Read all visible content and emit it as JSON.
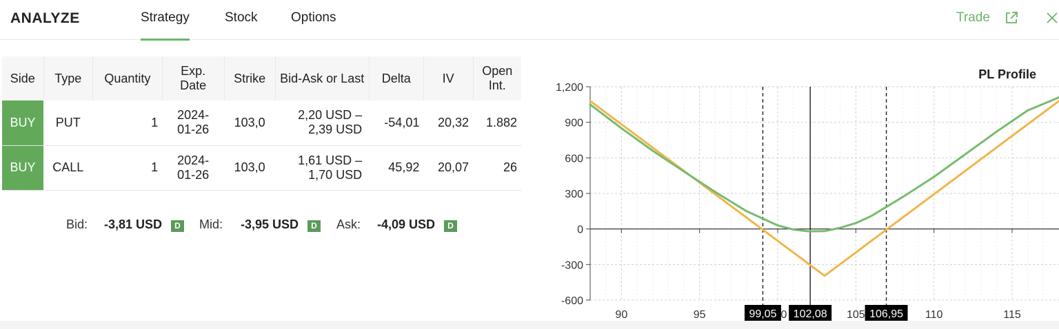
{
  "header": {
    "title": "ANALYZE",
    "tabs": [
      {
        "label": "Strategy",
        "active": true
      },
      {
        "label": "Stock",
        "active": false
      },
      {
        "label": "Options",
        "active": false
      }
    ],
    "trade_label": "Trade",
    "icons": [
      "external-link-icon",
      "close-icon"
    ]
  },
  "table": {
    "columns": [
      "Side",
      "Type",
      "Quantity",
      "Exp. Date",
      "Strike",
      "Bid-Ask or Last",
      "Delta",
      "IV",
      "Open Int."
    ],
    "rows": [
      {
        "side": "BUY",
        "type": "PUT",
        "quantity": "1",
        "exp_line1": "2024-",
        "exp_line2": "01-26",
        "strike": "103,0",
        "bidask_line1": "2,20 USD –",
        "bidask_line2": "2,39 USD",
        "delta": "-54,01",
        "iv": "20,32",
        "open_int": "1.882"
      },
      {
        "side": "BUY",
        "type": "CALL",
        "quantity": "1",
        "exp_line1": "2024-",
        "exp_line2": "01-26",
        "strike": "103,0",
        "bidask_line1": "1,61 USD –",
        "bidask_line2": "1,70 USD",
        "delta": "45,92",
        "iv": "20,07",
        "open_int": "26"
      }
    ]
  },
  "summary": {
    "bid_label": "Bid:",
    "bid_value": "-3,81 USD",
    "mid_label": "Mid:",
    "mid_value": "-3,95 USD",
    "ask_label": "Ask:",
    "ask_value": "-4,09 USD",
    "badge": "D"
  },
  "colors": {
    "accent": "#6ab46a",
    "buy": "#62aa5a",
    "expiry_line": "#f0b64a",
    "today_line": "#77bb6f"
  },
  "chart_data": {
    "type": "line",
    "title": "PL Profile",
    "xlabel": "",
    "ylabel": "",
    "xlim": [
      88,
      118
    ],
    "ylim": [
      -600,
      1200
    ],
    "x_ticks": [
      90,
      95,
      100,
      105,
      110,
      115
    ],
    "y_ticks": [
      -600,
      -300,
      0,
      300,
      600,
      900,
      1200
    ],
    "y_tick_labels": [
      "-600",
      "-300",
      "0",
      "300",
      "600",
      "900",
      "1,200"
    ],
    "grid": true,
    "series": [
      {
        "values": [
          [
            88,
            1080
          ],
          [
            103,
            -395
          ],
          [
            118,
            1080
          ]
        ]
      },
      {
        "values": [
          [
            88,
            1050
          ],
          [
            90,
            850
          ],
          [
            92,
            660
          ],
          [
            94,
            485
          ],
          [
            96,
            312
          ],
          [
            98,
            150
          ],
          [
            100,
            30
          ],
          [
            101,
            -5
          ],
          [
            102,
            -20
          ],
          [
            103,
            -18
          ],
          [
            104,
            10
          ],
          [
            105,
            50
          ],
          [
            106,
            110
          ],
          [
            108,
            270
          ],
          [
            110,
            440
          ],
          [
            112,
            630
          ],
          [
            114,
            820
          ],
          [
            116,
            1000
          ],
          [
            118,
            1110
          ]
        ]
      }
    ],
    "markers": [
      {
        "x": 99.05,
        "label": "99,05",
        "style": "dashed"
      },
      {
        "x": 102.08,
        "label": "102,08",
        "style": "solid"
      },
      {
        "x": 106.95,
        "label": "106,95",
        "style": "dashed"
      }
    ]
  }
}
